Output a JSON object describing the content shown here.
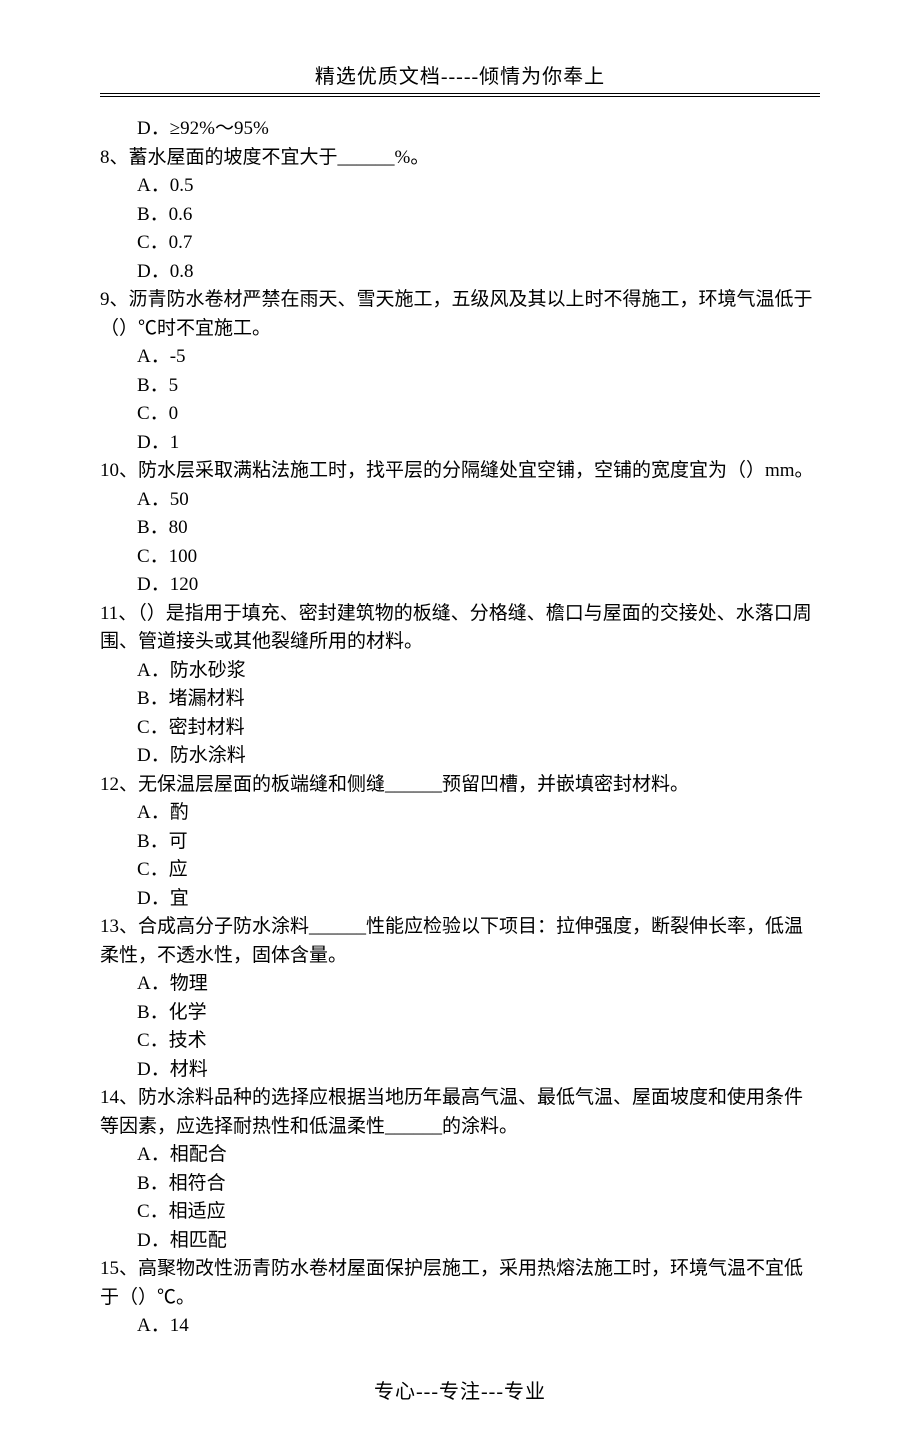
{
  "header": "精选优质文档-----倾情为你奉上",
  "footer": "专心---专注---专业",
  "lines": {
    "l0": "　D．≥92%～95%",
    "q8": "8、蓄水屋面的坡度不宜大于______%。",
    "q8a": "　A．0.5",
    "q8b": "　B．0.6",
    "q8c": "　C．0.7",
    "q8d": "　D．0.8",
    "q9": "9、沥青防水卷材严禁在雨天、雪天施工，五级风及其以上时不得施工，环境气温低于（）℃时不宜施工。",
    "q9a": "　A．-5",
    "q9b": "　B．5",
    "q9c": "　C．0",
    "q9d": "　D．1",
    "q10": "10、防水层采取满粘法施工时，找平层的分隔缝处宜空铺，空铺的宽度宜为（）mm。",
    "q10a": "　A．50",
    "q10b": "　B．80",
    "q10c": "　C．100",
    "q10d": "　D．120",
    "q11": "11、（）是指用于填充、密封建筑物的板缝、分格缝、檐口与屋面的交接处、水落口周围、管道接头或其他裂缝所用的材料。",
    "q11a": "　A．防水砂浆",
    "q11b": "　B．堵漏材料",
    "q11c": "　C．密封材料",
    "q11d": "　D．防水涂料",
    "q12": "12、无保温层屋面的板端缝和侧缝______预留凹槽，并嵌填密封材料。",
    "q12a": "　A．酌",
    "q12b": "　B．可",
    "q12c": "　C．应",
    "q12d": "　D．宜",
    "q13": "13、合成高分子防水涂料______性能应检验以下项目：拉伸强度，断裂伸长率，低温柔性，不透水性，固体含量。",
    "q13a": "　A．物理",
    "q13b": "　B．化学",
    "q13c": "　C．技术",
    "q13d": "　D．材料",
    "q14": "14、防水涂料品种的选择应根据当地历年最高气温、最低气温、屋面坡度和使用条件等因素，应选择耐热性和低温柔性______的涂料。",
    "q14a": "　A．相配合",
    "q14b": "　B．相符合",
    "q14c": "　C．相适应",
    "q14d": "　D．相匹配",
    "q15": "15、高聚物改性沥青防水卷材屋面保护层施工，采用热熔法施工时，环境气温不宜低于（）℃。",
    "q15a": "　A．14"
  }
}
